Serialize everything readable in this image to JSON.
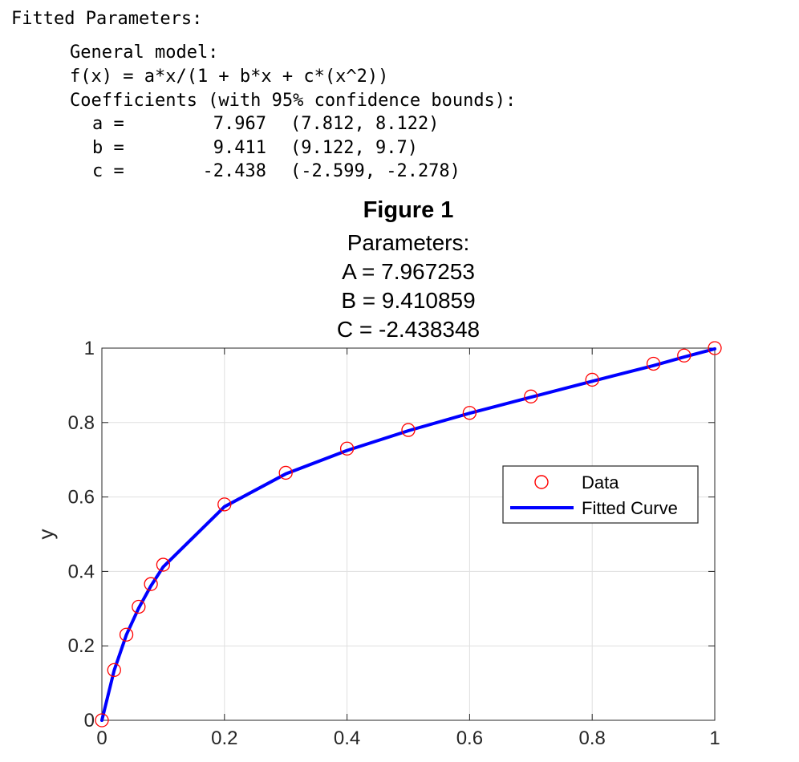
{
  "console": {
    "header": "Fitted Parameters:",
    "model_label": "General model:",
    "model_formula": "f(x) = a*x/(1 + b*x + c*(x^2))",
    "coef_header": "Coefficients (with 95% confidence bounds):",
    "coefficients": [
      {
        "name": "a =",
        "value": "7.967",
        "bounds": "(7.812, 8.122)"
      },
      {
        "name": "b =",
        "value": "9.411",
        "bounds": "(9.122, 9.7)"
      },
      {
        "name": "c =",
        "value": "-2.438",
        "bounds": "(-2.599, -2.278)"
      }
    ]
  },
  "figure": {
    "title": "Figure 1"
  },
  "chart_data": {
    "type": "scatter",
    "title_lines": [
      "Parameters:",
      "A = 7.967253",
      "B = 9.410859",
      "C = -2.438348"
    ],
    "xlabel": "",
    "ylabel": "y",
    "xlim": [
      0,
      1
    ],
    "ylim": [
      0,
      1
    ],
    "xticks": [
      0,
      0.2,
      0.4,
      0.6,
      0.8,
      1
    ],
    "xtick_labels": [
      "0",
      "0.2",
      "0.4",
      "0.6",
      "0.8",
      "1"
    ],
    "yticks": [
      0,
      0.2,
      0.4,
      0.6,
      0.8,
      1
    ],
    "ytick_labels": [
      "0",
      "0.2",
      "0.4",
      "0.6",
      "0.8",
      "1"
    ],
    "grid": true,
    "legend_position": "right",
    "series": [
      {
        "name": "Data",
        "type": "scatter",
        "marker": "circle-open",
        "color": "#ff0000",
        "x": [
          0,
          0.02,
          0.04,
          0.06,
          0.08,
          0.1,
          0.2,
          0.3,
          0.4,
          0.5,
          0.6,
          0.7,
          0.8,
          0.9,
          0.95,
          1.0
        ],
        "y": [
          0,
          0.135,
          0.23,
          0.305,
          0.366,
          0.418,
          0.58,
          0.665,
          0.73,
          0.78,
          0.826,
          0.87,
          0.915,
          0.958,
          0.98,
          1.0
        ]
      },
      {
        "name": "Fitted Curve",
        "type": "line",
        "color": "#0000ff",
        "x": [
          0,
          0.02,
          0.04,
          0.06,
          0.08,
          0.1,
          0.2,
          0.3,
          0.4,
          0.5,
          0.6,
          0.7,
          0.8,
          0.9,
          0.95,
          1.0
        ],
        "y": [
          0,
          0.134,
          0.23,
          0.301,
          0.361,
          0.412,
          0.574,
          0.662,
          0.725,
          0.778,
          0.825,
          0.868,
          0.911,
          0.953,
          0.976,
          0.998
        ]
      }
    ]
  }
}
